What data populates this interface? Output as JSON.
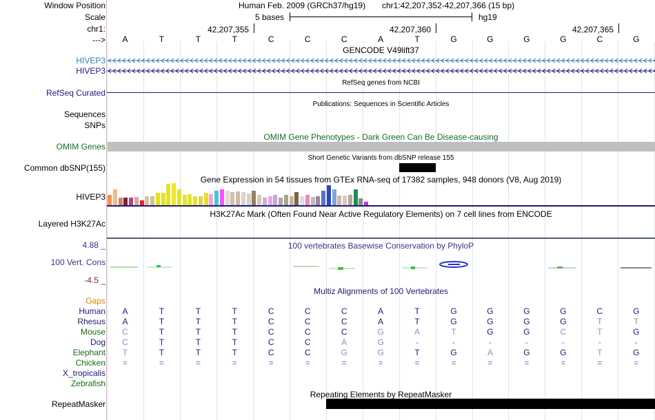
{
  "header": {
    "window_position_label": "Window Position",
    "scale_label": "Scale",
    "chrom_label": "chr1:",
    "arrow_label": "--->",
    "assembly": "Human Feb. 2009 (GRCh37/hg19)",
    "position": "chr1:42,207,352-42,207,366 (15 bp)",
    "scale_text": "5 bases",
    "db": "hg19",
    "ticks": [
      "42,207,355",
      "42,207,360",
      "42,207,365"
    ]
  },
  "bases": [
    "A",
    "T",
    "T",
    "T",
    "C",
    "C",
    "C",
    "A",
    "T",
    "G",
    "G",
    "G",
    "G",
    "C",
    "G"
  ],
  "tracks": {
    "gencode": {
      "title": "GENCODE V49lift37",
      "gene1": "HIVEP3",
      "gene2": "HIVEP3"
    },
    "refseq": {
      "label": "RefSeq Curated",
      "title": "RefSeq genes from NCBI"
    },
    "publications": {
      "label1": "Sequences",
      "label2": "SNPs",
      "title": "Publications: Sequences in Scientific Articles"
    },
    "omim": {
      "label": "OMIM Genes",
      "title": "OMIM Gene Phenotypes - Dark Green Can Be Disease-causing"
    },
    "dbsnp": {
      "label": "Common dbSNP(155)",
      "title": "Short Genetic Variants from dbSNP release 155"
    },
    "gtex": {
      "label": "HIVEP3",
      "title": "Gene Expression in 54 tissues from GTEx RNA-seq of 17382 samples, 948 donors (V8, Aug 2019)"
    },
    "h3k27ac": {
      "label": "Layered H3K27Ac",
      "title": "H3K27Ac Mark (Often Found Near Active Regulatory Elements) on 7 cell lines from ENCODE"
    },
    "phylop": {
      "label": "100 Vert. Cons",
      "max": "4.88 _",
      "min": "-4.5 _",
      "title": "100 vertebrates Basewise Conservation by PhyloP"
    },
    "multiz": {
      "title": "Multiz Alignments of 100 Vertebrates",
      "gaps_label": "Gaps",
      "species": [
        {
          "name": "Human",
          "seq": [
            "A",
            "T",
            "T",
            "T",
            "C",
            "C",
            "C",
            "A",
            "T",
            "G",
            "G",
            "G",
            "G",
            "C",
            "G"
          ]
        },
        {
          "name": "Rhesus",
          "seq": [
            "A",
            "T",
            "T",
            "T",
            "C",
            "C",
            "C",
            "A",
            "T",
            "G",
            "G",
            "G",
            "G",
            "T",
            "T"
          ]
        },
        {
          "name": "Mouse",
          "seq": [
            "C",
            "T",
            "T",
            "T",
            "C",
            "C",
            "C",
            "G",
            "A",
            "T",
            "G",
            "G",
            "C",
            "T",
            "G"
          ]
        },
        {
          "name": "Dog",
          "seq": [
            "C",
            "T",
            "T",
            "T",
            "C",
            "C",
            "A",
            "G",
            "-",
            "-",
            "-",
            "-",
            "-",
            "-",
            "-"
          ]
        },
        {
          "name": "Elephant",
          "seq": [
            "T",
            "T",
            "T",
            "T",
            "C",
            "C",
            "G",
            "G",
            "T",
            "G",
            "A",
            "G",
            "G",
            "T",
            "G"
          ]
        },
        {
          "name": "Chicken",
          "seq": [
            "=",
            "=",
            "=",
            "=",
            "=",
            "=",
            "=",
            "=",
            "=",
            "=",
            "=",
            "=",
            "=",
            "=",
            "="
          ]
        },
        {
          "name": "X_tropicalis",
          "seq": [
            "",
            "",
            "",
            "",
            "",
            "",
            "",
            "",
            "",
            "",
            "",
            "",
            "",
            "",
            ""
          ]
        },
        {
          "name": "Zebrafish",
          "seq": [
            "",
            "",
            "",
            "",
            "",
            "",
            "",
            "",
            "",
            "",
            "",
            "",
            "",
            "",
            ""
          ]
        }
      ]
    },
    "repeatmasker": {
      "label": "RepeatMasker",
      "title": "Repeating Elements by RepeatMasker"
    }
  },
  "colors": {
    "gencode_blue": "#2f7fb6",
    "navy": "#1a1a78",
    "omim_green": "#0f6e23",
    "omim_bar": "#bfbfbf",
    "phylop_blue": "#343481",
    "gaps_orange": "#d48a00",
    "species_green": "#126b12"
  },
  "gtex_bars": [
    {
      "color": "#f29452",
      "value": 14
    },
    {
      "color": "#f5b889",
      "value": 22
    },
    {
      "color": "#c58b66",
      "value": 10
    },
    {
      "color": "#7a1e3a",
      "value": 10
    },
    {
      "color": "#b7417b",
      "value": 10
    },
    {
      "color": "#d4a7ab",
      "value": 11
    },
    {
      "color": "#e8232a",
      "value": 7
    },
    {
      "color": "#dac59b",
      "value": 12
    },
    {
      "color": "#cdc590",
      "value": 12
    },
    {
      "color": "#e7e01b",
      "value": 17
    },
    {
      "color": "#e6e31d",
      "value": 17
    },
    {
      "color": "#e6e22e",
      "value": 29
    },
    {
      "color": "#eee82b",
      "value": 30
    },
    {
      "color": "#e6e22e",
      "value": 22
    },
    {
      "color": "#e3e13b",
      "value": 14
    },
    {
      "color": "#e6e22e",
      "value": 15
    },
    {
      "color": "#e6e22e",
      "value": 12
    },
    {
      "color": "#dbd84a",
      "value": 12
    },
    {
      "color": "#ecda36",
      "value": 17
    },
    {
      "color": "#f8a3c8",
      "value": 15
    },
    {
      "color": "#3ccbd8",
      "value": 20
    },
    {
      "color": "#ff4fff",
      "value": 22
    },
    {
      "color": "#dedcd1",
      "value": 20
    },
    {
      "color": "#d0bfb5",
      "value": 18
    },
    {
      "color": "#d2b8a6",
      "value": 19
    },
    {
      "color": "#ddd3c6",
      "value": 18
    },
    {
      "color": "#d0d0d0",
      "value": 16
    },
    {
      "color": "#94805b",
      "value": 20
    },
    {
      "color": "#d8c8b4",
      "value": 14
    },
    {
      "color": "#c8b2c6",
      "value": 10
    },
    {
      "color": "#e7a9e7",
      "value": 12
    },
    {
      "color": "#c6a7d5",
      "value": 14
    },
    {
      "color": "#b1a8a4",
      "value": 10
    },
    {
      "color": "#aaa28c",
      "value": 14
    },
    {
      "color": "#c7b4a0",
      "value": 12
    },
    {
      "color": "#7c6246",
      "value": 18
    },
    {
      "color": "#dddddd",
      "value": 12
    },
    {
      "color": "#f08ab8",
      "value": 14
    },
    {
      "color": "#c9b9a8",
      "value": 11
    },
    {
      "color": "#9e81ad",
      "value": 12
    },
    {
      "color": "#5970c4",
      "value": 20
    },
    {
      "color": "#3146b3",
      "value": 27
    },
    {
      "color": "#7ba7dc",
      "value": 22
    },
    {
      "color": "#cfbaa4",
      "value": 13
    },
    {
      "color": "#d8c8b8",
      "value": 13
    },
    {
      "color": "#b5a898",
      "value": 14
    },
    {
      "color": "#19904c",
      "value": 22
    },
    {
      "color": "#8b8b8b",
      "value": 9
    },
    {
      "color": "#cc30d3",
      "value": 5
    }
  ]
}
